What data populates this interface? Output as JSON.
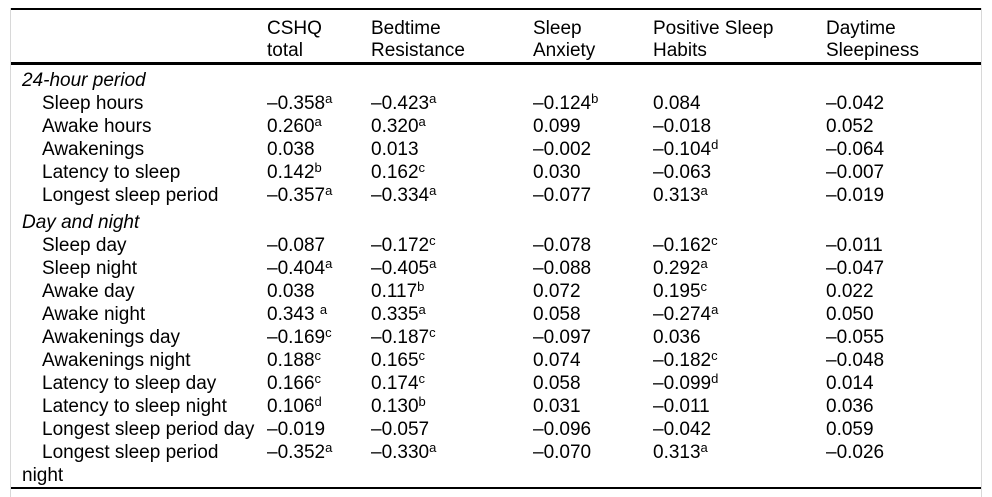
{
  "colors": {
    "text": "#000000",
    "rule": "#000000",
    "frame_border": "#d8d8d8",
    "background": "#ffffff"
  },
  "table": {
    "columns": [
      {
        "label": ""
      },
      {
        "label": "CSHQ\ntotal"
      },
      {
        "label": "Bedtime\nResistance"
      },
      {
        "label": "Sleep\nAnxiety"
      },
      {
        "label": "Positive Sleep\nHabits"
      },
      {
        "label": "Daytime\nSleepiness"
      }
    ],
    "sections": [
      {
        "title": "24-hour period",
        "rows": [
          {
            "label": "Sleep hours",
            "values": [
              {
                "v": "–0.358",
                "sup": "a"
              },
              {
                "v": "–0.423",
                "sup": "a"
              },
              {
                "v": "–0.124",
                "sup": "b"
              },
              {
                "v": "0.084"
              },
              {
                "v": "–0.042"
              }
            ]
          },
          {
            "label": "Awake hours",
            "values": [
              {
                "v": "0.260",
                "sup": "a"
              },
              {
                "v": "0.320",
                "sup": "a"
              },
              {
                "v": "0.099"
              },
              {
                "v": "–0.018"
              },
              {
                "v": "0.052"
              }
            ]
          },
          {
            "label": "Awakenings",
            "values": [
              {
                "v": "0.038"
              },
              {
                "v": "0.013"
              },
              {
                "v": "–0.002"
              },
              {
                "v": "–0.104",
                "sup": "d"
              },
              {
                "v": "–0.064"
              }
            ]
          },
          {
            "label": "Latency to sleep",
            "values": [
              {
                "v": "0.142",
                "sup": "b"
              },
              {
                "v": "0.162",
                "sup": "c"
              },
              {
                "v": "0.030"
              },
              {
                "v": "–0.063"
              },
              {
                "v": "–0.007"
              }
            ]
          },
          {
            "label": "Longest sleep period",
            "values": [
              {
                "v": "–0.357",
                "sup": "a"
              },
              {
                "v": "–0.334",
                "sup": "a"
              },
              {
                "v": "–0.077"
              },
              {
                "v": "0.313",
                "sup": "a"
              },
              {
                "v": "–0.019"
              }
            ]
          }
        ]
      },
      {
        "title": "Day and night",
        "rows": [
          {
            "label": "Sleep day",
            "values": [
              {
                "v": "–0.087"
              },
              {
                "v": "–0.172",
                "sup": "c"
              },
              {
                "v": "–0.078"
              },
              {
                "v": "–0.162",
                "sup": "c"
              },
              {
                "v": "–0.011"
              }
            ]
          },
          {
            "label": "Sleep night",
            "values": [
              {
                "v": "–0.404",
                "sup": "a"
              },
              {
                "v": "–0.405",
                "sup": "a"
              },
              {
                "v": "–0.088"
              },
              {
                "v": "0.292",
                "sup": "a"
              },
              {
                "v": "–0.047"
              }
            ]
          },
          {
            "label": "Awake day",
            "values": [
              {
                "v": "0.038"
              },
              {
                "v": "0.117",
                "sup": "b"
              },
              {
                "v": "0.072"
              },
              {
                "v": "0.195",
                "sup": "c"
              },
              {
                "v": "0.022"
              }
            ]
          },
          {
            "label": "Awake night",
            "values": [
              {
                "v": "0.343 ",
                "sup": "a"
              },
              {
                "v": "0.335",
                "sup": "a"
              },
              {
                "v": "0.058"
              },
              {
                "v": "–0.274",
                "sup": "a"
              },
              {
                "v": "0.050"
              }
            ]
          },
          {
            "label": "Awakenings day",
            "values": [
              {
                "v": "–0.169",
                "sup": "c"
              },
              {
                "v": "–0.187",
                "sup": "c"
              },
              {
                "v": "–0.097"
              },
              {
                "v": "0.036"
              },
              {
                "v": "–0.055"
              }
            ]
          },
          {
            "label": "Awakenings night",
            "values": [
              {
                "v": "0.188",
                "sup": "c"
              },
              {
                "v": "0.165",
                "sup": "c"
              },
              {
                "v": "0.074"
              },
              {
                "v": "–0.182",
                "sup": "c"
              },
              {
                "v": "–0.048"
              }
            ]
          },
          {
            "label": "Latency to sleep day",
            "values": [
              {
                "v": "0.166",
                "sup": "c"
              },
              {
                "v": "0.174",
                "sup": "c"
              },
              {
                "v": "0.058"
              },
              {
                "v": "–0.099",
                "sup": "d"
              },
              {
                "v": "0.014"
              }
            ]
          },
          {
            "label": "Latency to sleep night",
            "values": [
              {
                "v": "0.106",
                "sup": "d"
              },
              {
                "v": "0.130",
                "sup": "b"
              },
              {
                "v": "0.031"
              },
              {
                "v": "–0.011"
              },
              {
                "v": "0.036"
              }
            ]
          },
          {
            "label": "Longest sleep period day",
            "values": [
              {
                "v": "–0.019"
              },
              {
                "v": "–0.057"
              },
              {
                "v": "–0.096"
              },
              {
                "v": "–0.042"
              },
              {
                "v": "0.059"
              }
            ]
          },
          {
            "label": "Longest sleep period\nnight",
            "values": [
              {
                "v": "–0.352",
                "sup": "a"
              },
              {
                "v": "–0.330",
                "sup": "a"
              },
              {
                "v": "–0.070"
              },
              {
                "v": "0.313",
                "sup": "a"
              },
              {
                "v": "–0.026"
              }
            ]
          }
        ]
      }
    ]
  }
}
